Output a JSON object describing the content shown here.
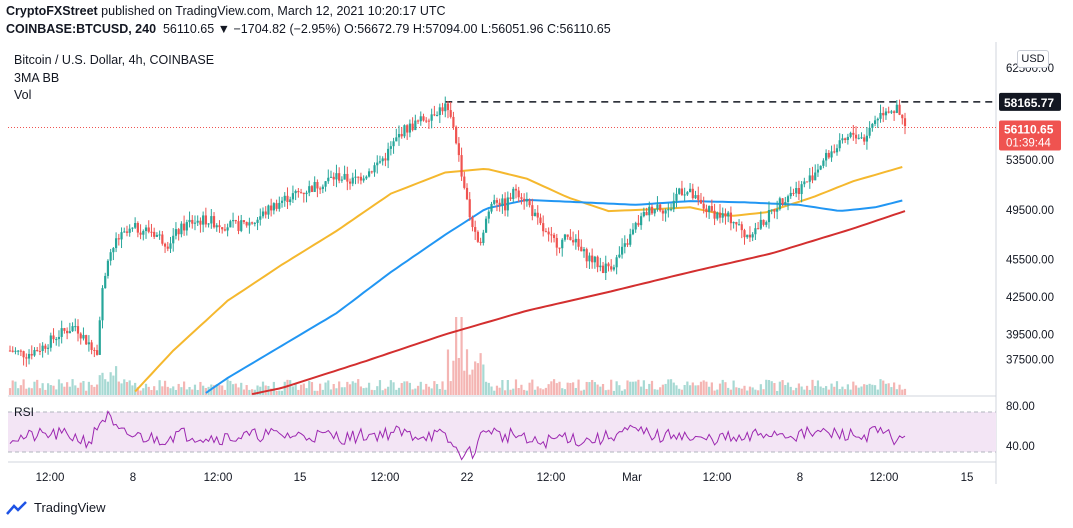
{
  "header": {
    "line1_author": "CryptoFXStreet",
    "line1_rest": " published on TradingView.com, March 12, 2021 10:20:17 UTC",
    "symbol_code": "COINBASE:BTCUSD, 240",
    "ohlc": "56110.65  ▼ −1704.82 (−2.95%)  O:56672.79  H:57094.00  L:56051.96  C:56110.65"
  },
  "legend": {
    "symbol": "Bitcoin / U.S. Dollar, 4h, COINBASE",
    "indicator1": "3MA BB",
    "indicator2": "Vol"
  },
  "currency_button": "USD",
  "footer_logo": "TradingView",
  "colors": {
    "up": "#26a69a",
    "down": "#ef5350",
    "ma_fast": "#f5b82e",
    "ma_mid": "#2196f3",
    "ma_slow": "#d32f2f",
    "rsi": "#9c27b0",
    "rsi_band": "#f3e5f5"
  },
  "chart_data": {
    "type": "candlestick",
    "price_axis_ticks": [
      "62500.00",
      "53500.00",
      "49500.00",
      "45500.00",
      "42500.00",
      "39500.00",
      "37500.00"
    ],
    "time_axis_ticks": [
      "12:00",
      "8",
      "12:00",
      "15",
      "12:00",
      "22",
      "12:00",
      "Mar",
      "12:00",
      "8",
      "12:00",
      "15"
    ],
    "resistance_level": 58165.77,
    "last_price_label": "56110.65",
    "countdown_label": "01:39:44",
    "resistance_label": "58165.77",
    "rsi_label": "RSI",
    "rsi_ticks": [
      "80.00",
      "40.00"
    ],
    "price_path": [
      [
        0,
        38200
      ],
      [
        6,
        37900
      ],
      [
        12,
        38500
      ],
      [
        18,
        39500
      ],
      [
        24,
        40200
      ],
      [
        28,
        39000
      ],
      [
        32,
        38300
      ],
      [
        34,
        43000
      ],
      [
        36,
        45800
      ],
      [
        40,
        47200
      ],
      [
        46,
        48000
      ],
      [
        52,
        47800
      ],
      [
        58,
        46800
      ],
      [
        62,
        47800
      ],
      [
        66,
        48500
      ],
      [
        72,
        48700
      ],
      [
        78,
        48300
      ],
      [
        84,
        48200
      ],
      [
        90,
        48600
      ],
      [
        96,
        49700
      ],
      [
        102,
        50500
      ],
      [
        108,
        51000
      ],
      [
        114,
        51600
      ],
      [
        120,
        52200
      ],
      [
        126,
        51800
      ],
      [
        132,
        52600
      ],
      [
        138,
        53800
      ],
      [
        144,
        55800
      ],
      [
        150,
        56500
      ],
      [
        156,
        57400
      ],
      [
        160,
        57800
      ],
      [
        163,
        56300
      ],
      [
        166,
        52500
      ],
      [
        169,
        49000
      ],
      [
        172,
        46500
      ],
      [
        175,
        48800
      ],
      [
        178,
        50500
      ],
      [
        182,
        49800
      ],
      [
        186,
        51200
      ],
      [
        190,
        50200
      ],
      [
        194,
        48500
      ],
      [
        198,
        47200
      ],
      [
        202,
        46800
      ],
      [
        206,
        47500
      ],
      [
        210,
        46100
      ],
      [
        214,
        45500
      ],
      [
        218,
        44800
      ],
      [
        222,
        45200
      ],
      [
        226,
        46500
      ],
      [
        230,
        48200
      ],
      [
        234,
        49300
      ],
      [
        238,
        49900
      ],
      [
        242,
        49300
      ],
      [
        246,
        51200
      ],
      [
        250,
        50800
      ],
      [
        254,
        49800
      ],
      [
        258,
        49300
      ],
      [
        262,
        49000
      ],
      [
        266,
        48700
      ],
      [
        270,
        47500
      ],
      [
        274,
        47900
      ],
      [
        278,
        48800
      ],
      [
        282,
        49900
      ],
      [
        286,
        50800
      ],
      [
        290,
        51200
      ],
      [
        294,
        52000
      ],
      [
        298,
        53200
      ],
      [
        302,
        54200
      ],
      [
        306,
        54800
      ],
      [
        310,
        55600
      ],
      [
        314,
        55200
      ],
      [
        318,
        56800
      ],
      [
        322,
        57600
      ],
      [
        326,
        57500
      ],
      [
        329,
        56110
      ]
    ],
    "ma_fast_path": [
      [
        40,
        33500
      ],
      [
        60,
        38200
      ],
      [
        80,
        42200
      ],
      [
        100,
        45100
      ],
      [
        120,
        47800
      ],
      [
        140,
        50800
      ],
      [
        160,
        52500
      ],
      [
        175,
        52800
      ],
      [
        190,
        52000
      ],
      [
        205,
        50500
      ],
      [
        220,
        49400
      ],
      [
        232,
        49500
      ],
      [
        250,
        49700
      ],
      [
        265,
        49000
      ],
      [
        278,
        49300
      ],
      [
        295,
        50500
      ],
      [
        310,
        51800
      ],
      [
        329,
        53000
      ]
    ],
    "ma_mid_path": [
      [
        60,
        33000
      ],
      [
        80,
        36000
      ],
      [
        100,
        38600
      ],
      [
        120,
        41200
      ],
      [
        140,
        44500
      ],
      [
        160,
        47500
      ],
      [
        175,
        49600
      ],
      [
        190,
        50300
      ],
      [
        210,
        50100
      ],
      [
        230,
        49900
      ],
      [
        250,
        50200
      ],
      [
        270,
        50100
      ],
      [
        290,
        49900
      ],
      [
        305,
        49400
      ],
      [
        318,
        49700
      ],
      [
        329,
        50300
      ]
    ],
    "ma_slow_path": [
      [
        55,
        33400
      ],
      [
        80,
        34300
      ],
      [
        100,
        35200
      ],
      [
        130,
        37300
      ],
      [
        160,
        39500
      ],
      [
        190,
        41400
      ],
      [
        220,
        42900
      ],
      [
        250,
        44500
      ],
      [
        280,
        46000
      ],
      [
        310,
        48000
      ],
      [
        329,
        49400
      ]
    ]
  }
}
